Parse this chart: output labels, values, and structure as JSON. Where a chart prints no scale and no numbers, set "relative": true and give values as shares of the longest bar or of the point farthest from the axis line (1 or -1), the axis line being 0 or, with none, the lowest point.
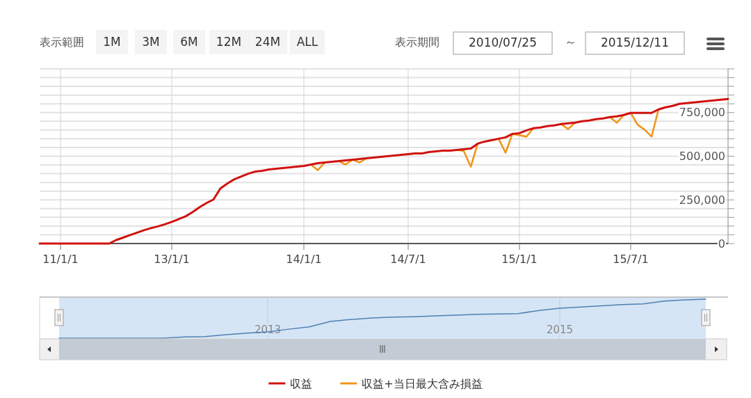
{
  "chart_data": [
    {
      "type": "other",
      "annotations": [
        "表示範囲",
        "1M",
        "3M",
        "6M",
        "12M",
        "24M",
        "ALL",
        "表示期間",
        "2010/07/25",
        "～",
        "2015/12/11"
      ]
    },
    {
      "type": "line",
      "categories": [
        null,
        null,
        null,
        "11/1/1",
        null,
        null,
        null,
        null,
        null,
        null,
        null,
        null,
        null,
        null,
        null,
        null,
        null,
        null,
        null,
        "13/1/1",
        null,
        null,
        null,
        null,
        null,
        null,
        null,
        null,
        null,
        null,
        null,
        null,
        null,
        null,
        null,
        null,
        null,
        null,
        "14/1/1",
        null,
        null,
        null,
        null,
        null,
        null,
        null,
        null,
        null,
        null,
        null,
        null,
        null,
        null,
        "14/7/1",
        null,
        null,
        null,
        null,
        null,
        null,
        null,
        null,
        null,
        null,
        null,
        null,
        null,
        null,
        null,
        "15/1/1",
        null,
        null,
        null,
        null,
        null,
        null,
        null,
        null,
        null,
        null,
        null,
        null,
        null,
        null,
        null,
        "15/7/1",
        null,
        null,
        null,
        null,
        null,
        null,
        null,
        null,
        null,
        null,
        null,
        null,
        null,
        null
      ],
      "ylim": [
        0,
        1000000
      ],
      "yticks": [
        0,
        {
          "value": 50000,
          "label": null
        },
        {
          "value": 100000,
          "label": null
        },
        {
          "value": 150000,
          "label": null
        },
        {
          "value": 200000,
          "label": null
        },
        {
          "value": 250000,
          "label": "250,000"
        },
        {
          "value": 300000,
          "label": null
        },
        {
          "value": 350000,
          "label": null
        },
        {
          "value": 400000,
          "label": null
        },
        {
          "value": 450000,
          "label": null
        },
        {
          "value": 500000,
          "label": "500,000"
        },
        {
          "value": 550000,
          "label": null
        },
        {
          "value": 600000,
          "label": null
        },
        {
          "value": 650000,
          "label": null
        },
        {
          "value": 700000,
          "label": null
        },
        {
          "value": 750000,
          "label": "750,000"
        },
        {
          "value": 800000,
          "label": null
        },
        {
          "value": 850000,
          "label": null
        },
        {
          "value": 900000,
          "label": null
        },
        {
          "value": 950000,
          "label": null
        },
        {
          "value": 1000000,
          "label": null
        }
      ],
      "grid": true,
      "legend": "bottom",
      "line_style": "solid",
      "series": [
        {
          "name": "収益+当日最大含み損益",
          "color": "#f0961e",
          "values": [
            null,
            null,
            null,
            null,
            null,
            null,
            null,
            null,
            null,
            null,
            null,
            null,
            null,
            null,
            null,
            null,
            null,
            null,
            null,
            null,
            null,
            null,
            null,
            null,
            null,
            null,
            null,
            null,
            null,
            null,
            null,
            null,
            null,
            null,
            null,
            null,
            null,
            null,
            null,
            452000,
            420000,
            464000,
            null,
            472000,
            452000,
            480000,
            464000,
            488000,
            null,
            null,
            null,
            null,
            null,
            null,
            null,
            null,
            null,
            null,
            null,
            null,
            536000,
            530000,
            440000,
            572000,
            null,
            null,
            600000,
            520000,
            628000,
            620000,
            612000,
            660000,
            null,
            null,
            null,
            684000,
            656000,
            692000,
            null,
            null,
            null,
            null,
            724000,
            692000,
            736000,
            748000,
            680000,
            652000,
            612000,
            768000,
            null,
            null,
            null,
            null,
            null,
            null,
            null,
            null,
            null,
            null
          ]
        },
        {
          "name": "収益",
          "color": "#d0120f",
          "values": [
            0,
            0,
            0,
            0,
            0,
            0,
            0,
            0,
            0,
            0,
            0,
            20000,
            34000,
            48000,
            62000,
            76000,
            88000,
            98000,
            110000,
            124000,
            140000,
            156000,
            180000,
            208000,
            232000,
            252000,
            316000,
            344000,
            368000,
            384000,
            400000,
            412000,
            416000,
            424000,
            428000,
            432000,
            436000,
            440000,
            444000,
            452000,
            460000,
            464000,
            468000,
            472000,
            476000,
            480000,
            484000,
            488000,
            492000,
            496000,
            500000,
            504000,
            508000,
            512000,
            516000,
            516000,
            524000,
            528000,
            532000,
            532000,
            536000,
            540000,
            544000,
            572000,
            584000,
            592000,
            600000,
            608000,
            628000,
            632000,
            648000,
            660000,
            664000,
            672000,
            676000,
            684000,
            688000,
            692000,
            700000,
            704000,
            712000,
            716000,
            724000,
            728000,
            736000,
            748000,
            748000,
            748000,
            748000,
            768000,
            780000,
            788000,
            800000,
            804000,
            808000,
            812000,
            816000,
            820000,
            824000,
            828000
          ]
        }
      ]
    },
    {
      "type": "line",
      "relative": true,
      "grid": "x",
      "categories": [
        null,
        null,
        null,
        null,
        null,
        null,
        null,
        null,
        null,
        null,
        "2013",
        null,
        null,
        null,
        null,
        null,
        null,
        null,
        null,
        null,
        null,
        null,
        null,
        null,
        "2015",
        null,
        null,
        null,
        null,
        null,
        null,
        null
      ],
      "series": [
        {
          "color": "#4f7fb3",
          "values": [
            0,
            0,
            0,
            0,
            0,
            0,
            0.03,
            0.04,
            0.09,
            0.13,
            0.16,
            0.23,
            0.29,
            0.43,
            0.48,
            0.52,
            0.54,
            0.55,
            0.57,
            0.59,
            0.61,
            0.62,
            0.63,
            0.71,
            0.77,
            0.8,
            0.83,
            0.86,
            0.88,
            0.95,
            0.98,
            1
          ]
        }
      ]
    }
  ]
}
